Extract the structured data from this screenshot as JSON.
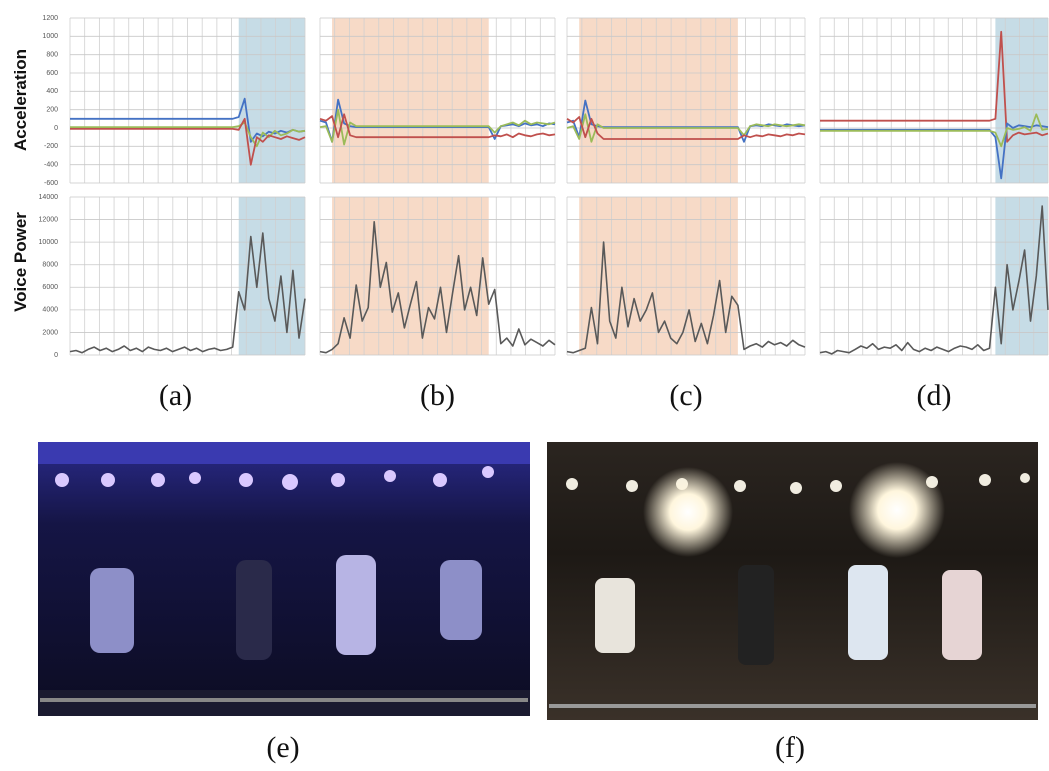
{
  "accel_axis": {
    "label": "Acceleration",
    "ylim": [
      -600,
      1200
    ],
    "yticks": [
      -600,
      -400,
      -200,
      0,
      200,
      400,
      600,
      800,
      1000,
      1200
    ]
  },
  "voice_axis": {
    "label": "Voice Power",
    "ylim": [
      0,
      14000
    ],
    "yticks": [
      0,
      2000,
      4000,
      6000,
      8000,
      10000,
      12000,
      14000
    ]
  },
  "xlim": [
    0,
    39
  ],
  "grid": true,
  "panels": [
    {
      "caption": "(a)",
      "shade": [
        28,
        39
      ],
      "shade_color": "#bcd6e2",
      "accel_series": [
        {
          "color": "#4472c4",
          "values": [
            100,
            100,
            100,
            100,
            100,
            100,
            100,
            100,
            100,
            100,
            100,
            100,
            100,
            100,
            100,
            100,
            100,
            100,
            100,
            100,
            100,
            100,
            100,
            100,
            100,
            100,
            100,
            100,
            120,
            320,
            -150,
            -60,
            -90,
            -40,
            -60,
            -30,
            -50,
            -20,
            -40,
            -30
          ]
        },
        {
          "color": "#9bbb59",
          "values": [
            10,
            10,
            10,
            10,
            10,
            10,
            10,
            10,
            10,
            10,
            10,
            10,
            10,
            10,
            10,
            10,
            10,
            10,
            10,
            10,
            10,
            10,
            10,
            10,
            10,
            10,
            10,
            10,
            20,
            60,
            -100,
            -200,
            -50,
            -100,
            -30,
            -80,
            -60,
            -20,
            -40,
            -30
          ]
        },
        {
          "color": "#c0504d",
          "values": [
            -10,
            -10,
            -10,
            -10,
            -10,
            -10,
            -10,
            -10,
            -10,
            -10,
            -10,
            -10,
            -10,
            -10,
            -10,
            -10,
            -10,
            -10,
            -10,
            -10,
            -10,
            -10,
            -10,
            -10,
            -10,
            -10,
            -10,
            -10,
            -20,
            100,
            -400,
            -100,
            -150,
            -80,
            -100,
            -120,
            -90,
            -110,
            -130,
            -100
          ]
        }
      ],
      "voice": {
        "color": "#595959",
        "values": [
          300,
          400,
          200,
          500,
          700,
          400,
          600,
          300,
          500,
          800,
          400,
          600,
          300,
          700,
          500,
          400,
          600,
          300,
          500,
          700,
          400,
          600,
          300,
          500,
          600,
          400,
          500,
          700,
          5600,
          4000,
          10500,
          6000,
          10800,
          5000,
          3000,
          7000,
          2000,
          7500,
          1500,
          5000
        ]
      }
    },
    {
      "caption": "(b)",
      "shade": [
        2,
        28
      ],
      "shade_color": "#f6d3bd",
      "accel_series": [
        {
          "color": "#4472c4",
          "values": [
            80,
            60,
            -150,
            310,
            50,
            20,
            10,
            10,
            10,
            10,
            10,
            10,
            10,
            10,
            10,
            10,
            10,
            10,
            10,
            10,
            10,
            10,
            10,
            10,
            10,
            10,
            10,
            10,
            10,
            -120,
            20,
            30,
            40,
            20,
            50,
            30,
            40,
            20,
            50,
            40
          ]
        },
        {
          "color": "#9bbb59",
          "values": [
            10,
            20,
            -150,
            200,
            -180,
            60,
            20,
            20,
            20,
            20,
            20,
            20,
            20,
            20,
            20,
            20,
            20,
            20,
            20,
            20,
            20,
            20,
            20,
            20,
            20,
            20,
            20,
            20,
            20,
            -50,
            20,
            40,
            60,
            30,
            80,
            40,
            60,
            50,
            40,
            60
          ]
        },
        {
          "color": "#c0504d",
          "values": [
            100,
            80,
            130,
            -100,
            150,
            -80,
            -100,
            -100,
            -100,
            -100,
            -100,
            -100,
            -100,
            -100,
            -100,
            -100,
            -100,
            -100,
            -100,
            -100,
            -100,
            -100,
            -100,
            -100,
            -100,
            -100,
            -100,
            -100,
            -100,
            -80,
            -90,
            -70,
            -100,
            -60,
            -80,
            -90,
            -70,
            -60,
            -80,
            -70
          ]
        }
      ],
      "voice": {
        "color": "#595959",
        "values": [
          300,
          200,
          500,
          1000,
          3300,
          1500,
          6200,
          3000,
          4200,
          11800,
          6000,
          8200,
          3800,
          5500,
          2400,
          4500,
          6500,
          1500,
          4200,
          3200,
          6000,
          2000,
          5500,
          8800,
          4000,
          6000,
          3500,
          8600,
          4500,
          5800,
          1000,
          1500,
          800,
          2300,
          900,
          1400,
          1100,
          800,
          1300,
          900
        ]
      }
    },
    {
      "caption": "(c)",
      "shade": [
        2,
        28
      ],
      "shade_color": "#f6d3bd",
      "accel_series": [
        {
          "color": "#4472c4",
          "values": [
            60,
            80,
            -100,
            300,
            40,
            20,
            10,
            10,
            10,
            10,
            10,
            10,
            10,
            10,
            10,
            10,
            10,
            10,
            10,
            10,
            10,
            10,
            10,
            10,
            10,
            10,
            10,
            10,
            10,
            -150,
            20,
            30,
            20,
            40,
            30,
            20,
            40,
            30,
            20,
            30
          ]
        },
        {
          "color": "#9bbb59",
          "values": [
            0,
            20,
            -120,
            150,
            -150,
            40,
            0,
            0,
            0,
            0,
            0,
            0,
            0,
            0,
            0,
            0,
            0,
            0,
            0,
            0,
            0,
            0,
            0,
            0,
            0,
            0,
            0,
            0,
            0,
            -80,
            20,
            40,
            30,
            20,
            40,
            30,
            20,
            30,
            40,
            30
          ]
        },
        {
          "color": "#c0504d",
          "values": [
            100,
            60,
            120,
            -100,
            100,
            -60,
            -120,
            -120,
            -120,
            -120,
            -120,
            -120,
            -120,
            -120,
            -120,
            -120,
            -120,
            -120,
            -120,
            -120,
            -120,
            -120,
            -120,
            -120,
            -120,
            -120,
            -120,
            -120,
            -120,
            -80,
            -100,
            -80,
            -90,
            -70,
            -80,
            -90,
            -70,
            -80,
            -60,
            -70
          ]
        }
      ],
      "voice": {
        "color": "#595959",
        "values": [
          300,
          200,
          400,
          600,
          4200,
          1000,
          10000,
          3000,
          1500,
          6000,
          2500,
          5000,
          3000,
          4000,
          5500,
          2000,
          3000,
          1500,
          1000,
          2000,
          4000,
          1200,
          2800,
          1000,
          3500,
          6600,
          2000,
          5200,
          4400,
          500,
          800,
          1000,
          700,
          1200,
          900,
          1100,
          800,
          1300,
          900,
          700
        ]
      }
    },
    {
      "caption": "(d)",
      "shade": [
        30,
        39
      ],
      "shade_color": "#bcd6e2",
      "accel_series": [
        {
          "color": "#c0504d",
          "values": [
            80,
            80,
            80,
            80,
            80,
            80,
            80,
            80,
            80,
            80,
            80,
            80,
            80,
            80,
            80,
            80,
            80,
            80,
            80,
            80,
            80,
            80,
            80,
            80,
            80,
            80,
            80,
            80,
            80,
            80,
            100,
            1050,
            -150,
            -80,
            -50,
            -70,
            -60,
            -50,
            -80,
            -60
          ]
        },
        {
          "color": "#4472c4",
          "values": [
            -20,
            -20,
            -20,
            -20,
            -20,
            -20,
            -20,
            -20,
            -20,
            -20,
            -20,
            -20,
            -20,
            -20,
            -20,
            -20,
            -20,
            -20,
            -20,
            -20,
            -20,
            -20,
            -20,
            -20,
            -20,
            -20,
            -20,
            -20,
            -20,
            -20,
            -100,
            -550,
            50,
            0,
            30,
            20,
            10,
            30,
            20,
            10
          ]
        },
        {
          "color": "#9bbb59",
          "values": [
            -30,
            -30,
            -30,
            -30,
            -30,
            -30,
            -30,
            -30,
            -30,
            -30,
            -30,
            -30,
            -30,
            -30,
            -30,
            -30,
            -30,
            -30,
            -30,
            -30,
            -30,
            -30,
            -30,
            -30,
            -30,
            -30,
            -30,
            -30,
            -30,
            -30,
            -50,
            -200,
            0,
            -20,
            -10,
            10,
            -30,
            150,
            -20,
            -10
          ]
        }
      ],
      "voice": {
        "color": "#595959",
        "values": [
          200,
          300,
          100,
          400,
          300,
          200,
          500,
          800,
          600,
          1000,
          500,
          700,
          600,
          900,
          400,
          1100,
          500,
          300,
          600,
          400,
          700,
          500,
          300,
          600,
          800,
          700,
          500,
          900,
          400,
          600,
          6000,
          1000,
          8000,
          4000,
          6500,
          9300,
          3000,
          7000,
          13200,
          4000
        ]
      }
    }
  ],
  "photos": [
    {
      "caption": "(e)"
    },
    {
      "caption": "(f)"
    }
  ]
}
